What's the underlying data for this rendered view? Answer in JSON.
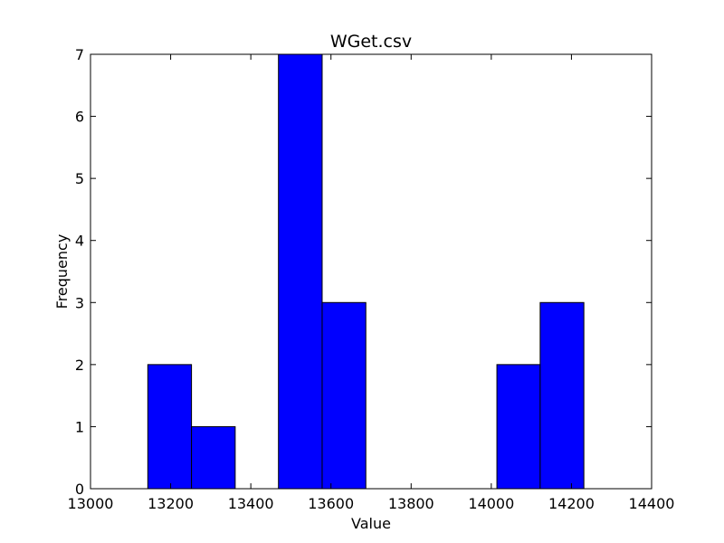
{
  "chart_data": {
    "type": "bar",
    "title": "WGet.csv",
    "xlabel": "Value",
    "ylabel": "Frequency",
    "xlim": [
      13000,
      14400
    ],
    "ylim": [
      0,
      7
    ],
    "x_ticks": [
      "13000",
      "13200",
      "13400",
      "13600",
      "13800",
      "14000",
      "14200",
      "14400"
    ],
    "y_ticks": [
      "0",
      "1",
      "2",
      "3",
      "4",
      "5",
      "6",
      "7"
    ],
    "bins": [
      {
        "start": 13143,
        "end": 13252,
        "count": 2
      },
      {
        "start": 13252,
        "end": 13361,
        "count": 1
      },
      {
        "start": 13361,
        "end": 13469,
        "count": 0
      },
      {
        "start": 13469,
        "end": 13578,
        "count": 7
      },
      {
        "start": 13578,
        "end": 13687,
        "count": 3
      },
      {
        "start": 13687,
        "end": 13796,
        "count": 0
      },
      {
        "start": 13796,
        "end": 13905,
        "count": 0
      },
      {
        "start": 13905,
        "end": 14014,
        "count": 0
      },
      {
        "start": 14014,
        "end": 14122,
        "count": 2
      },
      {
        "start": 14122,
        "end": 14231,
        "count": 3
      }
    ],
    "bar_color": "#0000ff",
    "grid": false,
    "legend": false
  }
}
